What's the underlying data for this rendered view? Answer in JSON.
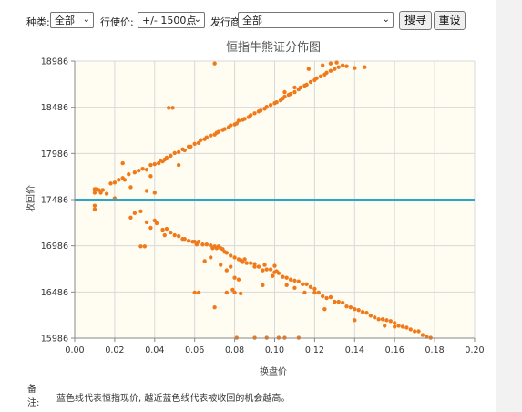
{
  "filters": {
    "type_label": "种类:",
    "type_value": "全部",
    "strike_label": "行使价:",
    "strike_value": "+/- 1500点",
    "issuer_label": "发行商:",
    "issuer_value": "全部",
    "search_button": "搜寻",
    "reset_button": "重设"
  },
  "chart_data": {
    "type": "scatter",
    "title": "恒指牛熊证分佈图",
    "xlabel": "换盘价",
    "ylabel": "收回价",
    "xlim": [
      0,
      0.2
    ],
    "ylim": [
      15986,
      18986
    ],
    "x_ticks": [
      "0.00",
      "0.02",
      "0.04",
      "0.06",
      "0.08",
      "0.10",
      "0.12",
      "0.14",
      "0.16",
      "0.18",
      "0.20"
    ],
    "y_ticks": [
      "15986",
      "16486",
      "16986",
      "17486",
      "17986",
      "18486",
      "18986"
    ],
    "reference_line": 17486,
    "colors": {
      "points": "#f07a1a",
      "reference_line": "#2aa6c6",
      "plot_bg": "#fffcf1"
    },
    "series": [
      {
        "points": [
          [
            0.01,
            17560
          ],
          [
            0.011,
            17600
          ],
          [
            0.012,
            17590
          ],
          [
            0.01,
            17600
          ],
          [
            0.013,
            17560
          ],
          [
            0.01,
            17380
          ],
          [
            0.01,
            17420
          ],
          [
            0.014,
            17590
          ],
          [
            0.016,
            17550
          ],
          [
            0.02,
            17500
          ],
          [
            0.018,
            17660
          ],
          [
            0.02,
            17670
          ],
          [
            0.022,
            17700
          ],
          [
            0.024,
            17720
          ],
          [
            0.025,
            17700
          ],
          [
            0.027,
            17760
          ],
          [
            0.03,
            17780
          ],
          [
            0.032,
            17800
          ],
          [
            0.034,
            17820
          ],
          [
            0.036,
            17810
          ],
          [
            0.038,
            17860
          ],
          [
            0.04,
            17870
          ],
          [
            0.042,
            17880
          ],
          [
            0.043,
            17910
          ],
          [
            0.045,
            17920
          ],
          [
            0.046,
            17940
          ],
          [
            0.048,
            17960
          ],
          [
            0.05,
            17990
          ],
          [
            0.052,
            18000
          ],
          [
            0.054,
            18030
          ],
          [
            0.055,
            18020
          ],
          [
            0.057,
            18060
          ],
          [
            0.058,
            18060
          ],
          [
            0.06,
            18090
          ],
          [
            0.062,
            18100
          ],
          [
            0.063,
            18130
          ],
          [
            0.065,
            18140
          ],
          [
            0.066,
            18160
          ],
          [
            0.068,
            18180
          ],
          [
            0.07,
            18190
          ],
          [
            0.071,
            18210
          ],
          [
            0.072,
            18220
          ],
          [
            0.074,
            18240
          ],
          [
            0.075,
            18250
          ],
          [
            0.077,
            18270
          ],
          [
            0.078,
            18290
          ],
          [
            0.08,
            18300
          ],
          [
            0.081,
            18310
          ],
          [
            0.082,
            18340
          ],
          [
            0.084,
            18350
          ],
          [
            0.085,
            18360
          ],
          [
            0.087,
            18380
          ],
          [
            0.088,
            18400
          ],
          [
            0.09,
            18420
          ],
          [
            0.092,
            18440
          ],
          [
            0.093,
            18450
          ],
          [
            0.095,
            18470
          ],
          [
            0.096,
            18490
          ],
          [
            0.098,
            18510
          ],
          [
            0.1,
            18530
          ],
          [
            0.101,
            18540
          ],
          [
            0.103,
            18560
          ],
          [
            0.104,
            18580
          ],
          [
            0.105,
            18600
          ],
          [
            0.107,
            18620
          ],
          [
            0.108,
            18630
          ],
          [
            0.11,
            18650
          ],
          [
            0.112,
            18680
          ],
          [
            0.113,
            18700
          ],
          [
            0.115,
            18720
          ],
          [
            0.116,
            18730
          ],
          [
            0.118,
            18760
          ],
          [
            0.12,
            18780
          ],
          [
            0.121,
            18800
          ],
          [
            0.123,
            18820
          ],
          [
            0.125,
            18840
          ],
          [
            0.126,
            18860
          ],
          [
            0.128,
            18880
          ],
          [
            0.13,
            18900
          ],
          [
            0.132,
            18920
          ],
          [
            0.134,
            18940
          ],
          [
            0.136,
            18930
          ],
          [
            0.128,
            18960
          ],
          [
            0.131,
            18970
          ],
          [
            0.124,
            18940
          ],
          [
            0.117,
            18900
          ],
          [
            0.14,
            18910
          ],
          [
            0.145,
            18920
          ],
          [
            0.11,
            18700
          ],
          [
            0.105,
            18650
          ],
          [
            0.047,
            18480
          ],
          [
            0.049,
            18480
          ],
          [
            0.07,
            18960
          ],
          [
            0.024,
            17880
          ],
          [
            0.038,
            17740
          ],
          [
            0.036,
            17580
          ],
          [
            0.04,
            17560
          ],
          [
            0.028,
            17620
          ],
          [
            0.052,
            17860
          ],
          [
            0.044,
            17900
          ],
          [
            0.033,
            17360
          ],
          [
            0.03,
            17340
          ],
          [
            0.028,
            17290
          ],
          [
            0.036,
            17240
          ],
          [
            0.04,
            17260
          ],
          [
            0.041,
            17230
          ],
          [
            0.038,
            17180
          ],
          [
            0.044,
            17160
          ],
          [
            0.046,
            17170
          ],
          [
            0.048,
            17130
          ],
          [
            0.045,
            17100
          ],
          [
            0.05,
            17100
          ],
          [
            0.052,
            17090
          ],
          [
            0.054,
            17060
          ],
          [
            0.055,
            17060
          ],
          [
            0.057,
            17040
          ],
          [
            0.059,
            17030
          ],
          [
            0.06,
            17030
          ],
          [
            0.061,
            17000
          ],
          [
            0.062,
            17030
          ],
          [
            0.064,
            17000
          ],
          [
            0.066,
            17000
          ],
          [
            0.068,
            16990
          ],
          [
            0.069,
            16960
          ],
          [
            0.07,
            16980
          ],
          [
            0.071,
            16960
          ],
          [
            0.072,
            16980
          ],
          [
            0.073,
            16960
          ],
          [
            0.074,
            16950
          ],
          [
            0.075,
            16920
          ],
          [
            0.076,
            16910
          ],
          [
            0.078,
            16880
          ],
          [
            0.08,
            16860
          ],
          [
            0.082,
            16840
          ],
          [
            0.083,
            16830
          ],
          [
            0.084,
            16810
          ],
          [
            0.086,
            16800
          ],
          [
            0.088,
            16800
          ],
          [
            0.09,
            16790
          ],
          [
            0.092,
            16760
          ],
          [
            0.094,
            16720
          ],
          [
            0.096,
            16730
          ],
          [
            0.098,
            16730
          ],
          [
            0.1,
            16700
          ],
          [
            0.101,
            16710
          ],
          [
            0.102,
            16690
          ],
          [
            0.104,
            16650
          ],
          [
            0.106,
            16640
          ],
          [
            0.108,
            16620
          ],
          [
            0.11,
            16610
          ],
          [
            0.112,
            16600
          ],
          [
            0.114,
            16570
          ],
          [
            0.116,
            16570
          ],
          [
            0.118,
            16540
          ],
          [
            0.12,
            16520
          ],
          [
            0.122,
            16480
          ],
          [
            0.124,
            16440
          ],
          [
            0.126,
            16420
          ],
          [
            0.128,
            16430
          ],
          [
            0.13,
            16380
          ],
          [
            0.132,
            16380
          ],
          [
            0.134,
            16370
          ],
          [
            0.136,
            16330
          ],
          [
            0.138,
            16320
          ],
          [
            0.14,
            16300
          ],
          [
            0.142,
            16290
          ],
          [
            0.144,
            16270
          ],
          [
            0.146,
            16260
          ],
          [
            0.148,
            16230
          ],
          [
            0.15,
            16210
          ],
          [
            0.152,
            16190
          ],
          [
            0.154,
            16190
          ],
          [
            0.156,
            16180
          ],
          [
            0.158,
            16170
          ],
          [
            0.16,
            16150
          ],
          [
            0.162,
            16120
          ],
          [
            0.164,
            16110
          ],
          [
            0.166,
            16100
          ],
          [
            0.168,
            16080
          ],
          [
            0.17,
            16060
          ],
          [
            0.172,
            16060
          ],
          [
            0.174,
            16020
          ],
          [
            0.176,
            16000
          ],
          [
            0.178,
            15990
          ],
          [
            0.16,
            16110
          ],
          [
            0.155,
            16120
          ],
          [
            0.09,
            16760
          ],
          [
            0.095,
            16780
          ],
          [
            0.085,
            16840
          ],
          [
            0.1,
            16770
          ],
          [
            0.065,
            16820
          ],
          [
            0.073,
            16780
          ],
          [
            0.078,
            16760
          ],
          [
            0.08,
            16640
          ],
          [
            0.082,
            16620
          ],
          [
            0.094,
            16560
          ],
          [
            0.099,
            16660
          ],
          [
            0.106,
            16560
          ],
          [
            0.11,
            16530
          ],
          [
            0.115,
            16480
          ],
          [
            0.076,
            16720
          ],
          [
            0.068,
            16860
          ],
          [
            0.06,
            16480
          ],
          [
            0.062,
            16480
          ],
          [
            0.076,
            16480
          ],
          [
            0.07,
            16320
          ],
          [
            0.08,
            16480
          ],
          [
            0.12,
            16480
          ],
          [
            0.125,
            16300
          ],
          [
            0.14,
            16180
          ],
          [
            0.033,
            16980
          ],
          [
            0.035,
            16980
          ],
          [
            0.081,
            15990
          ],
          [
            0.09,
            15990
          ],
          [
            0.096,
            15990
          ],
          [
            0.102,
            15990
          ],
          [
            0.105,
            15990
          ],
          [
            0.112,
            15990
          ],
          [
            0.083,
            16470
          ],
          [
            0.079,
            16510
          ]
        ]
      }
    ]
  },
  "note": {
    "label": "备注:",
    "text": "蓝色线代表恒指现价, 越近蓝色线代表被收回的机会越高。"
  }
}
